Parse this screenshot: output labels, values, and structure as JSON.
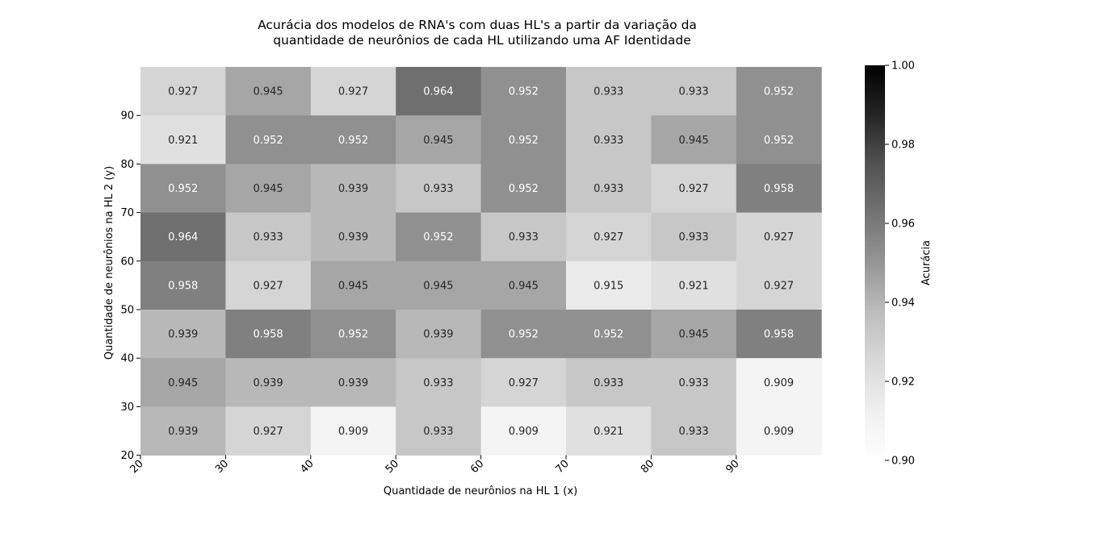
{
  "chart_data": {
    "type": "heatmap",
    "title_lines": [
      "Acurácia dos modelos de RNA's com duas HL's a partir da variação da",
      "quantidade de neurônios de cada HL utilizando uma AF Identidade"
    ],
    "xlabel": "Quantidade de neurônios na HL 1 (x)",
    "ylabel": "Quantidade de neurônios na HL 2 (y)",
    "x_ticks": [
      "20",
      "30",
      "40",
      "50",
      "60",
      "70",
      "80",
      "90"
    ],
    "y_ticks": [
      "20",
      "30",
      "40",
      "50",
      "60",
      "70",
      "80",
      "90"
    ],
    "rows_top_to_bottom": [
      [
        "0.927",
        "0.945",
        "0.927",
        "0.964",
        "0.952",
        "0.933",
        "0.933",
        "0.952"
      ],
      [
        "0.921",
        "0.952",
        "0.952",
        "0.945",
        "0.952",
        "0.933",
        "0.945",
        "0.952"
      ],
      [
        "0.952",
        "0.945",
        "0.939",
        "0.933",
        "0.952",
        "0.933",
        "0.927",
        "0.958"
      ],
      [
        "0.964",
        "0.933",
        "0.939",
        "0.952",
        "0.933",
        "0.927",
        "0.933",
        "0.927"
      ],
      [
        "0.958",
        "0.927",
        "0.945",
        "0.945",
        "0.945",
        "0.915",
        "0.921",
        "0.927"
      ],
      [
        "0.939",
        "0.958",
        "0.952",
        "0.939",
        "0.952",
        "0.952",
        "0.945",
        "0.958"
      ],
      [
        "0.945",
        "0.939",
        "0.939",
        "0.933",
        "0.927",
        "0.933",
        "0.933",
        "0.909"
      ],
      [
        "0.939",
        "0.927",
        "0.909",
        "0.933",
        "0.909",
        "0.921",
        "0.933",
        "0.909"
      ]
    ],
    "colorbar": {
      "label": "Acurácia",
      "vmin": 0.9,
      "vmax": 1.0,
      "ticks": [
        "0.90",
        "0.92",
        "0.94",
        "0.96",
        "0.98",
        "1.00"
      ],
      "colormap": "Greys"
    },
    "grid": false
  }
}
